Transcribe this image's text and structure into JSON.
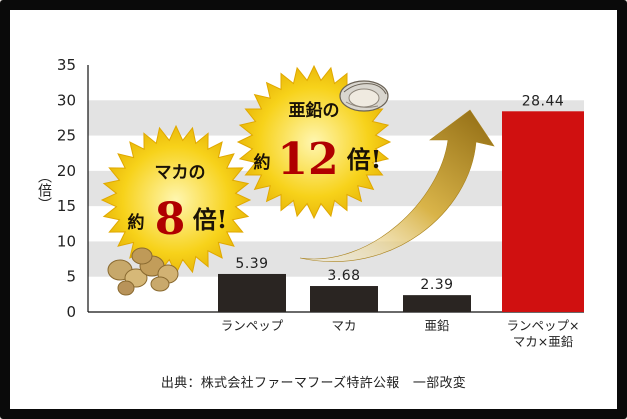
{
  "chart_data": {
    "type": "bar",
    "ylabel": "（倍）",
    "ylim": [
      0,
      35
    ],
    "yticks": [
      0,
      5,
      10,
      15,
      20,
      25,
      30,
      35
    ],
    "grid": "horizontal bands",
    "categories": [
      "ランペップ",
      "マカ",
      "亜鉛",
      "ランペップ×\nマカ×亜鉛"
    ],
    "values": [
      5.39,
      3.68,
      2.39,
      28.44
    ],
    "value_labels": [
      "5.39",
      "3.68",
      "2.39",
      "28.44"
    ],
    "bar_colors": [
      "#2a2522",
      "#2a2522",
      "#2a2522",
      "#d01010"
    ],
    "annotations": {
      "maca": {
        "top": "マカの",
        "prefix": "約",
        "number": "8",
        "suffix": "倍!"
      },
      "zinc": {
        "top": "亜鉛の",
        "prefix": "約",
        "number": "12",
        "suffix": "倍!"
      }
    }
  },
  "source": "出典：株式会社ファーマフーズ特許公報　一部改変",
  "colors": {
    "frame": "#0a0a0a",
    "band": "#e3e3e3",
    "dark_bar": "#2a2522",
    "highlight_bar": "#d01010",
    "burst_fill": "#f7d21a",
    "arrow_gold": "#c9a227"
  },
  "icons": {
    "maca": "maca-roots-image",
    "zinc": "oyster-image",
    "arrow": "curved-up-arrow"
  }
}
